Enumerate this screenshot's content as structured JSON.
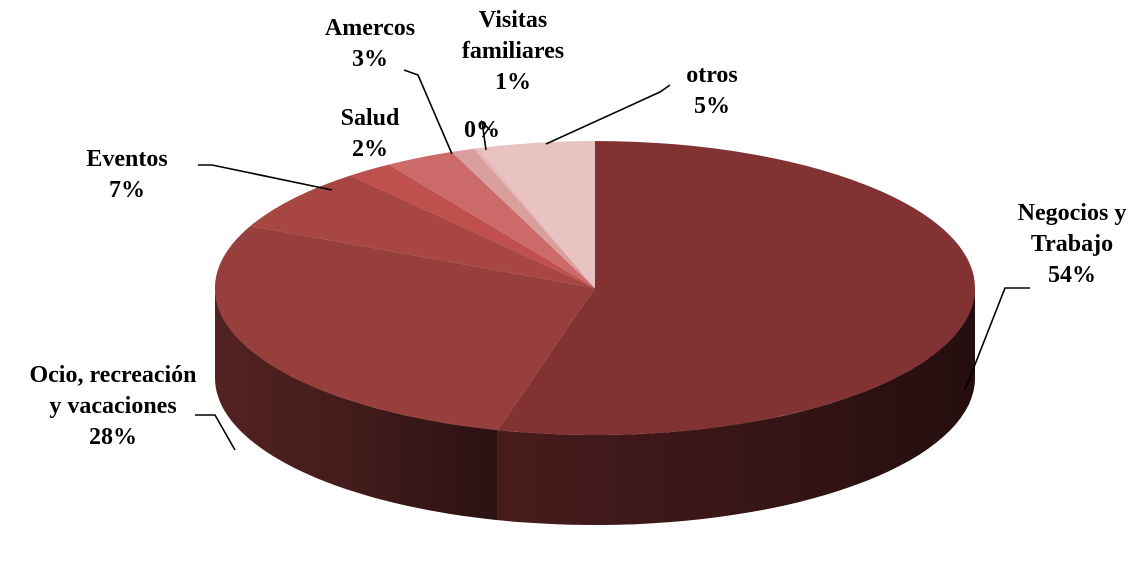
{
  "chart_data": {
    "type": "pie",
    "three_d": true,
    "legend": "none",
    "start_angle_deg": 90,
    "direction": "clockwise",
    "slices": [
      {
        "name": "Negocios y Trabajo",
        "label_lines": [
          "Negocios y",
          "Trabajo"
        ],
        "percent_label": "54%",
        "value": 54.5,
        "color": "#833234"
      },
      {
        "name": "Ocio, recreación y vacaciones",
        "label_lines": [
          "Ocio, recreación",
          "y vacaciones"
        ],
        "percent_label": "28%",
        "value": 28.0,
        "color": "#973f3d"
      },
      {
        "name": "Eventos",
        "label_lines": [
          "Eventos"
        ],
        "percent_label": "7%",
        "value": 7.0,
        "color": "#a84742"
      },
      {
        "name": "Salud",
        "label_lines": [
          "Salud"
        ],
        "percent_label": "2%",
        "value": 2.0,
        "color": "#c0504d"
      },
      {
        "name": "Amercos",
        "label_lines": [
          "Amercos"
        ],
        "percent_label": "3%",
        "value": 3.0,
        "color": "#cb6a68"
      },
      {
        "name": "Visitas familiares",
        "label_lines": [
          "Visitas",
          "familiares"
        ],
        "percent_label": "1%",
        "value": 1.0,
        "color": "#d99f9d"
      },
      {
        "name": "",
        "label_lines": [],
        "percent_label": "0%",
        "value": 0.2,
        "color": "#e5b8b7"
      },
      {
        "name": "otros",
        "label_lines": [
          "otros"
        ],
        "percent_label": "5%",
        "value": 5.0,
        "color": "#e8c3c2"
      }
    ]
  }
}
